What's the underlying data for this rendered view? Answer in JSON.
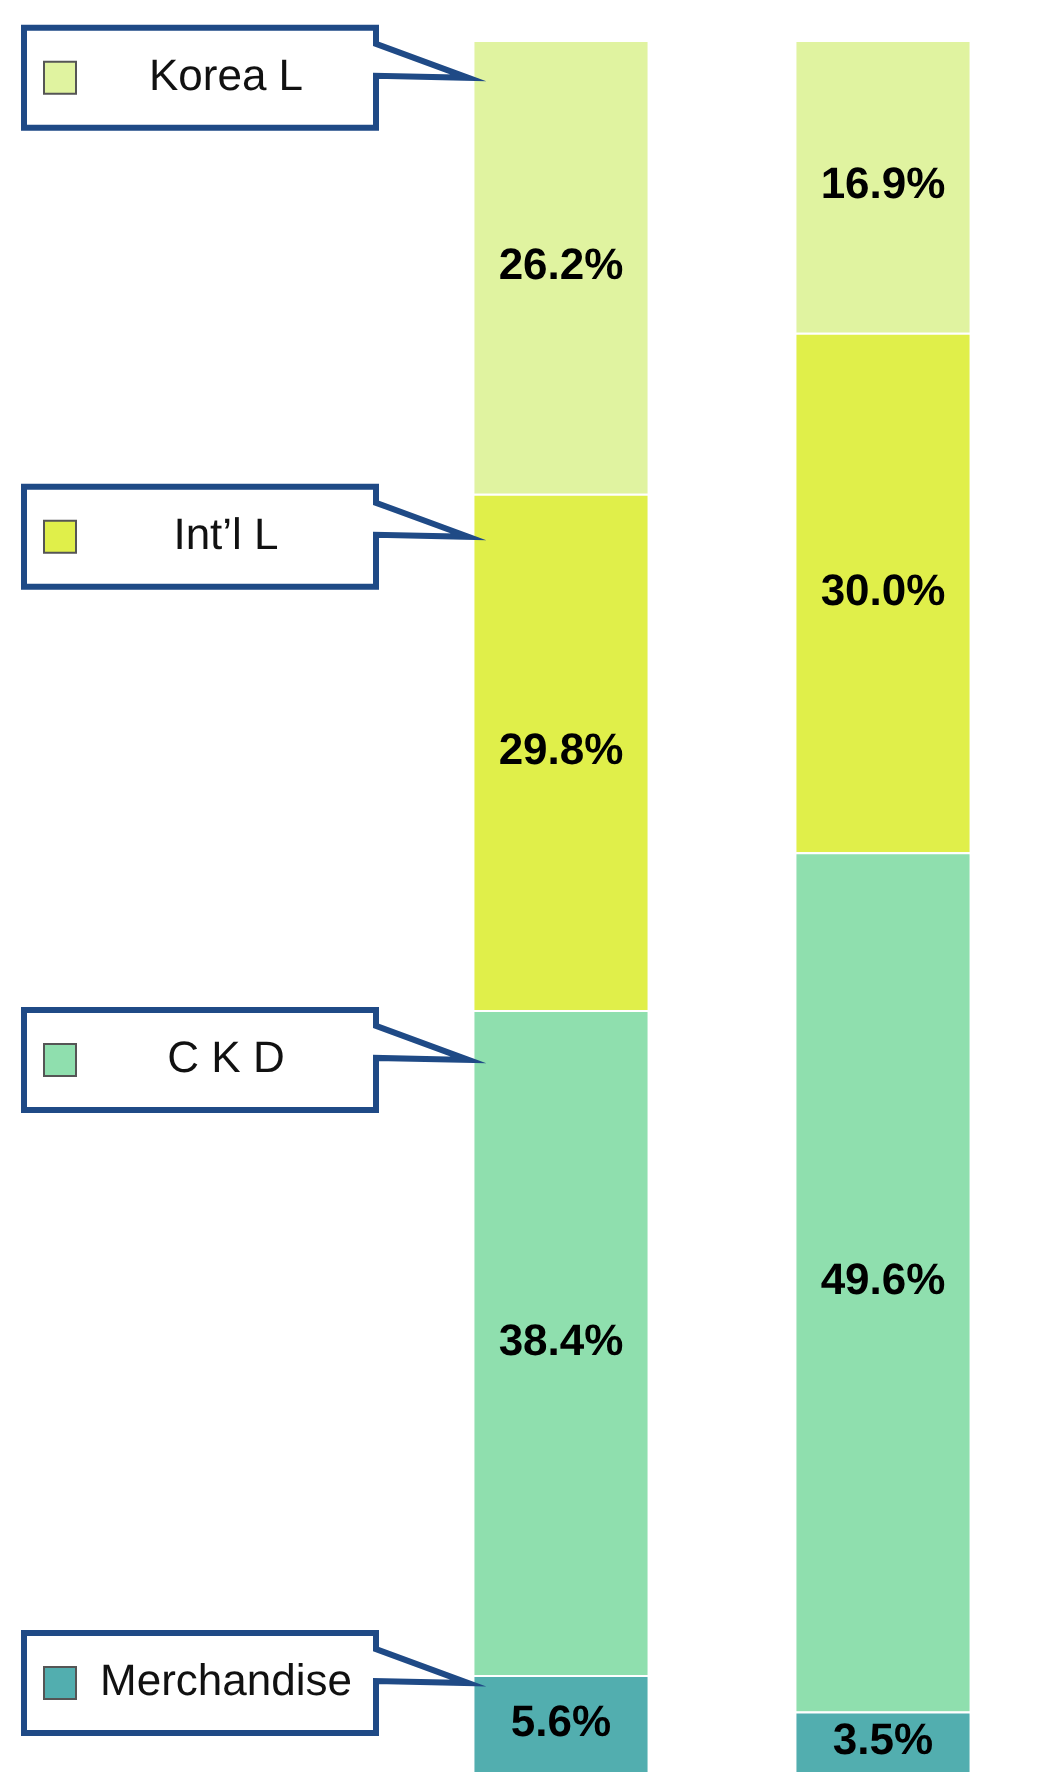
{
  "chart_data": {
    "type": "bar",
    "stacked": true,
    "categories": [
      null,
      null
    ],
    "legend": "left",
    "series": [
      {
        "name": "Merchandise",
        "color": "#52aeaf",
        "values": [
          5.6,
          3.5
        ],
        "value_labels": [
          "5.6%",
          "3.5%"
        ]
      },
      {
        "name": "C K D",
        "color": "#8fdfae",
        "values": [
          38.4,
          49.6
        ],
        "value_labels": [
          "38.4%",
          "49.6%"
        ]
      },
      {
        "name": "Int’l L",
        "color": "#e0ef4a",
        "values": [
          29.8,
          30.0
        ],
        "value_labels": [
          "29.8%",
          "30.0%"
        ]
      },
      {
        "name": "Korea L",
        "color": "#e0f3a0",
        "values": [
          26.2,
          16.9
        ],
        "value_labels": [
          "26.2%",
          "16.9%"
        ]
      }
    ]
  }
}
